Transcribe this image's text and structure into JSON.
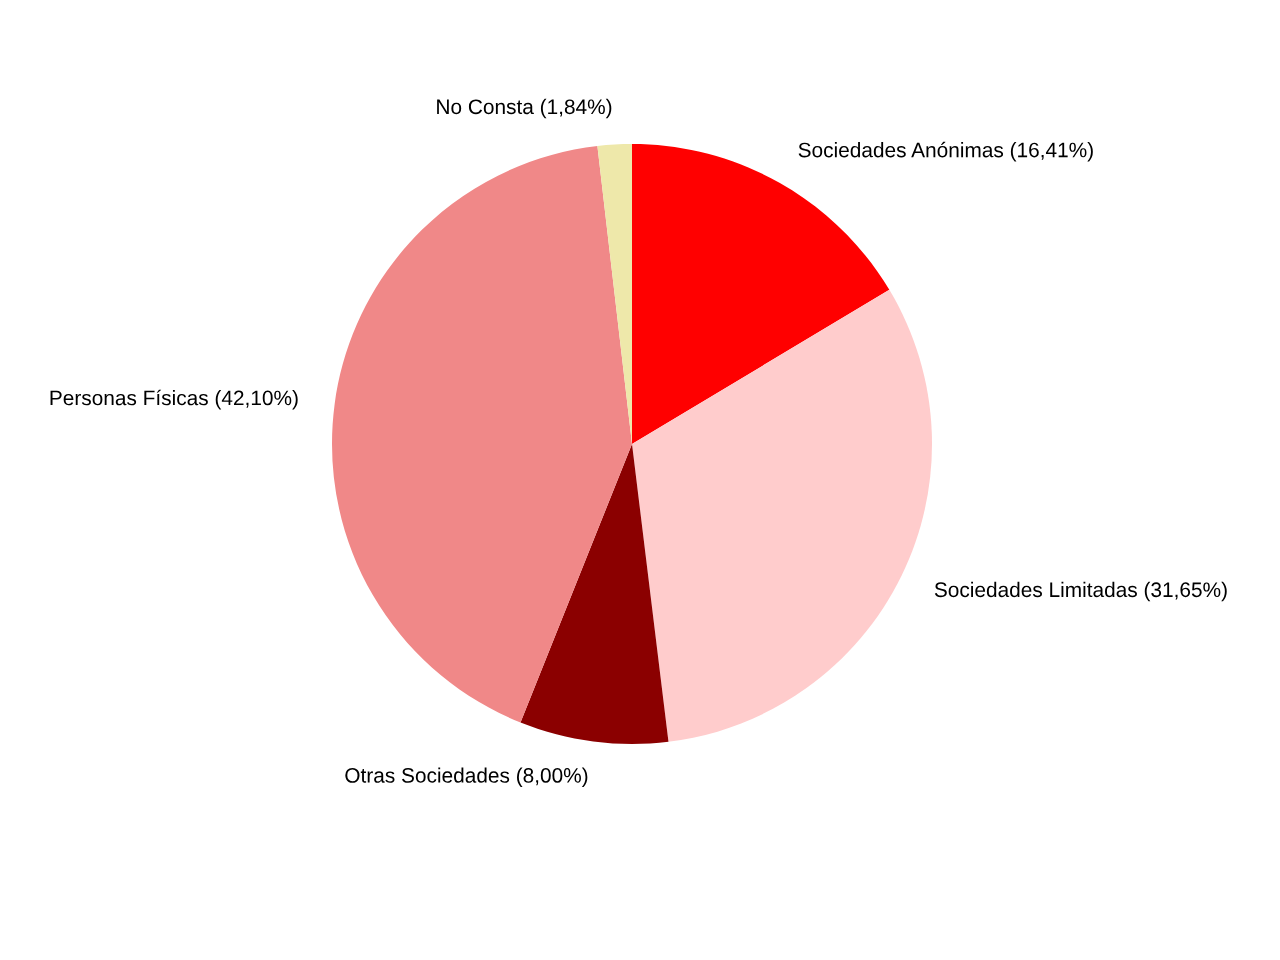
{
  "chart_data": {
    "type": "pie",
    "categories": [
      "Sociedades Anónimas (16,41%)",
      "Sociedades Limitadas (31,65%)",
      "Otras Sociedades (8,00%)",
      "Personas Físicas (42,10%)",
      "No Consta (1,84%)"
    ],
    "values": [
      16.41,
      31.65,
      8.0,
      42.1,
      1.84
    ],
    "colors": [
      "#ff0000",
      "#ffcccc",
      "#8b0000",
      "#f08888",
      "#eee8aa"
    ]
  }
}
